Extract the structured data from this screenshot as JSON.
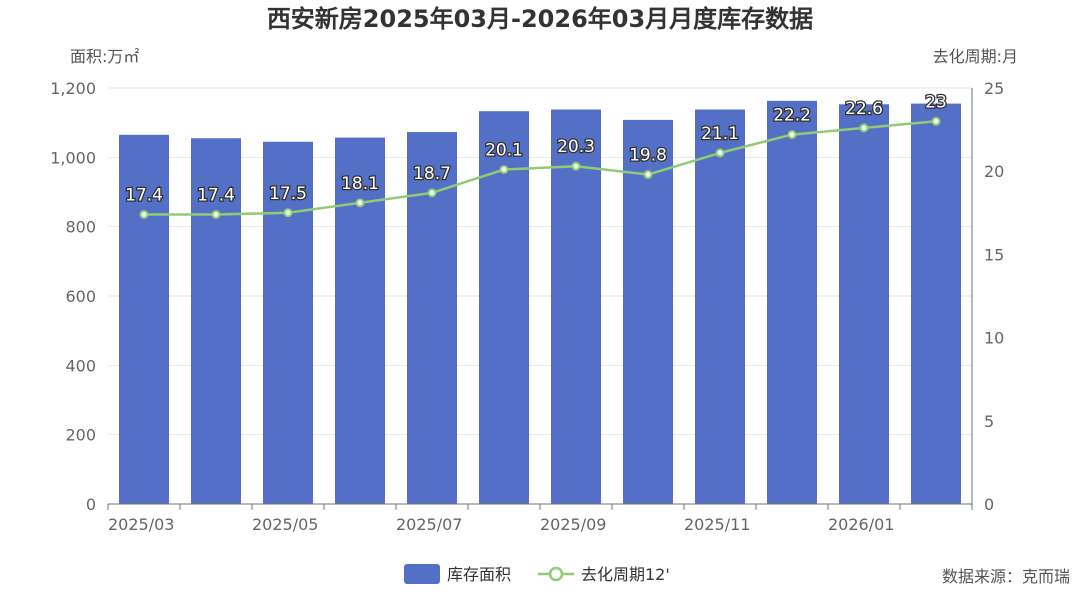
{
  "chart_data": {
    "type": "bar",
    "title": "西安新房2025年03月-2026年03月月度库存数据",
    "ylabel_left": "面积:万㎡",
    "ylabel_right": "去化周期:月",
    "categories": [
      "2025/03",
      "2025/04",
      "2025/05",
      "2025/06",
      "2025/07",
      "2025/08",
      "2025/09",
      "2025/10",
      "2025/11",
      "2025/12",
      "2026/01",
      "2026/02"
    ],
    "xtick_labels": [
      "2025/03",
      "",
      "2025/05",
      "",
      "2025/07",
      "",
      "2025/09",
      "",
      "2025/11",
      "",
      "2026/01",
      ""
    ],
    "ylim_left": [
      0,
      1200
    ],
    "yticks_left": [
      "0",
      "200",
      "400",
      "600",
      "800",
      "1,000",
      "1,200"
    ],
    "ylim_right": [
      0,
      25
    ],
    "yticks_right": [
      "0",
      "5",
      "10",
      "15",
      "20",
      "25"
    ],
    "series": [
      {
        "name": "库存面积",
        "type": "bar",
        "axis": "left",
        "color": "#5470c6",
        "values": [
          1065,
          1055,
          1045,
          1057,
          1073,
          1133,
          1138,
          1108,
          1138,
          1163,
          1153,
          1155
        ]
      },
      {
        "name": "去化周期12'",
        "type": "line",
        "axis": "right",
        "color": "#91cc75",
        "values": [
          17.4,
          17.4,
          17.5,
          18.1,
          18.7,
          20.1,
          20.3,
          19.8,
          21.1,
          22.2,
          22.6,
          23
        ],
        "labels": [
          "17.4",
          "17.4",
          "17.5",
          "18.1",
          "18.7",
          "20.1",
          "20.3",
          "19.8",
          "21.1",
          "22.2",
          "22.6",
          "23"
        ]
      }
    ],
    "legend": [
      "库存面积",
      "去化周期12'"
    ],
    "legend_position": "bottom-center",
    "grid": true
  },
  "source": "数据来源：克而瑞"
}
